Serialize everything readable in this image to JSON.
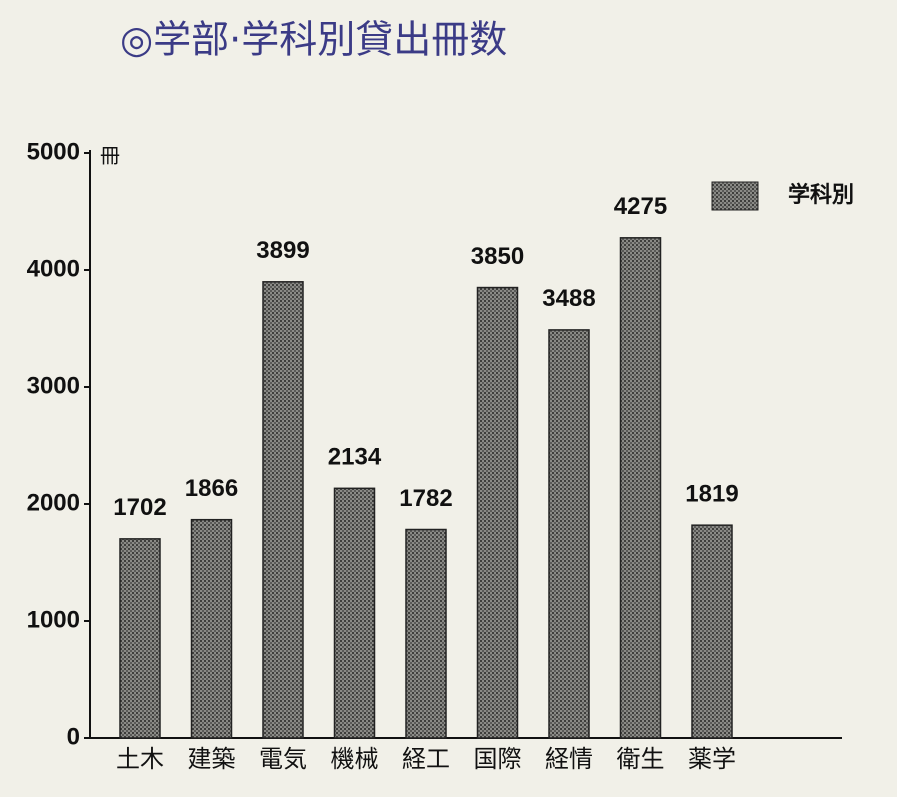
{
  "chart_data": {
    "type": "bar",
    "title": "◎学部·学科別貸出冊数",
    "y_unit": "冊",
    "categories": [
      "土木",
      "建築",
      "電気",
      "機械",
      "経工",
      "国際",
      "経情",
      "衛生",
      "薬学"
    ],
    "series": [
      {
        "name": "学科別",
        "color": "#6a6a68",
        "values": [
          1702,
          1866,
          3899,
          2134,
          1782,
          3850,
          3488,
          4275,
          1819
        ]
      }
    ],
    "ylim": [
      0,
      5000
    ],
    "yticks": [
      0,
      1000,
      2000,
      3000,
      4000,
      5000
    ],
    "grid": false
  }
}
